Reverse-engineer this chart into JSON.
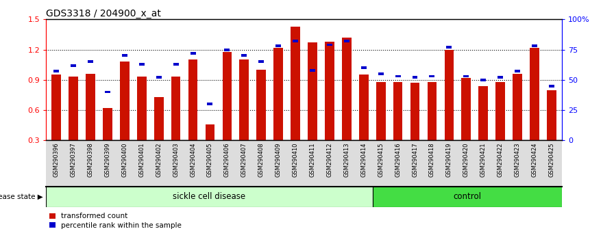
{
  "title": "GDS3318 / 204900_x_at",
  "samples": [
    "GSM290396",
    "GSM290397",
    "GSM290398",
    "GSM290399",
    "GSM290400",
    "GSM290401",
    "GSM290402",
    "GSM290403",
    "GSM290404",
    "GSM290405",
    "GSM290406",
    "GSM290407",
    "GSM290408",
    "GSM290409",
    "GSM290410",
    "GSM290411",
    "GSM290412",
    "GSM290413",
    "GSM290414",
    "GSM290415",
    "GSM290416",
    "GSM290417",
    "GSM290418",
    "GSM290419",
    "GSM290420",
    "GSM290421",
    "GSM290422",
    "GSM290423",
    "GSM290424",
    "GSM290425"
  ],
  "transformed_count": [
    0.95,
    0.93,
    0.96,
    0.62,
    1.08,
    0.93,
    0.73,
    0.93,
    1.1,
    0.46,
    1.18,
    1.1,
    1.0,
    1.22,
    1.43,
    1.27,
    1.28,
    1.32,
    0.95,
    0.88,
    0.88,
    0.87,
    0.88,
    1.2,
    0.92,
    0.84,
    0.88,
    0.96,
    1.22,
    0.8
  ],
  "percentile_rank": [
    57,
    62,
    65,
    40,
    70,
    63,
    52,
    63,
    72,
    30,
    75,
    70,
    65,
    78,
    82,
    58,
    79,
    82,
    60,
    55,
    53,
    52,
    53,
    77,
    53,
    50,
    52,
    57,
    78,
    45
  ],
  "sickle_count": 19,
  "control_count": 11,
  "bar_color": "#cc1100",
  "square_color": "#0000cc",
  "sickle_bg": "#ccffcc",
  "control_bg": "#44dd44",
  "xtick_bg": "#dddddd",
  "ylim_left": [
    0.3,
    1.5
  ],
  "yticks_left": [
    0.3,
    0.6,
    0.9,
    1.2,
    1.5
  ],
  "ylim_right": [
    0,
    100
  ],
  "yticks_right": [
    0,
    25,
    50,
    75,
    100
  ],
  "yticklabels_right": [
    "0",
    "25",
    "50",
    "75",
    "100%"
  ]
}
